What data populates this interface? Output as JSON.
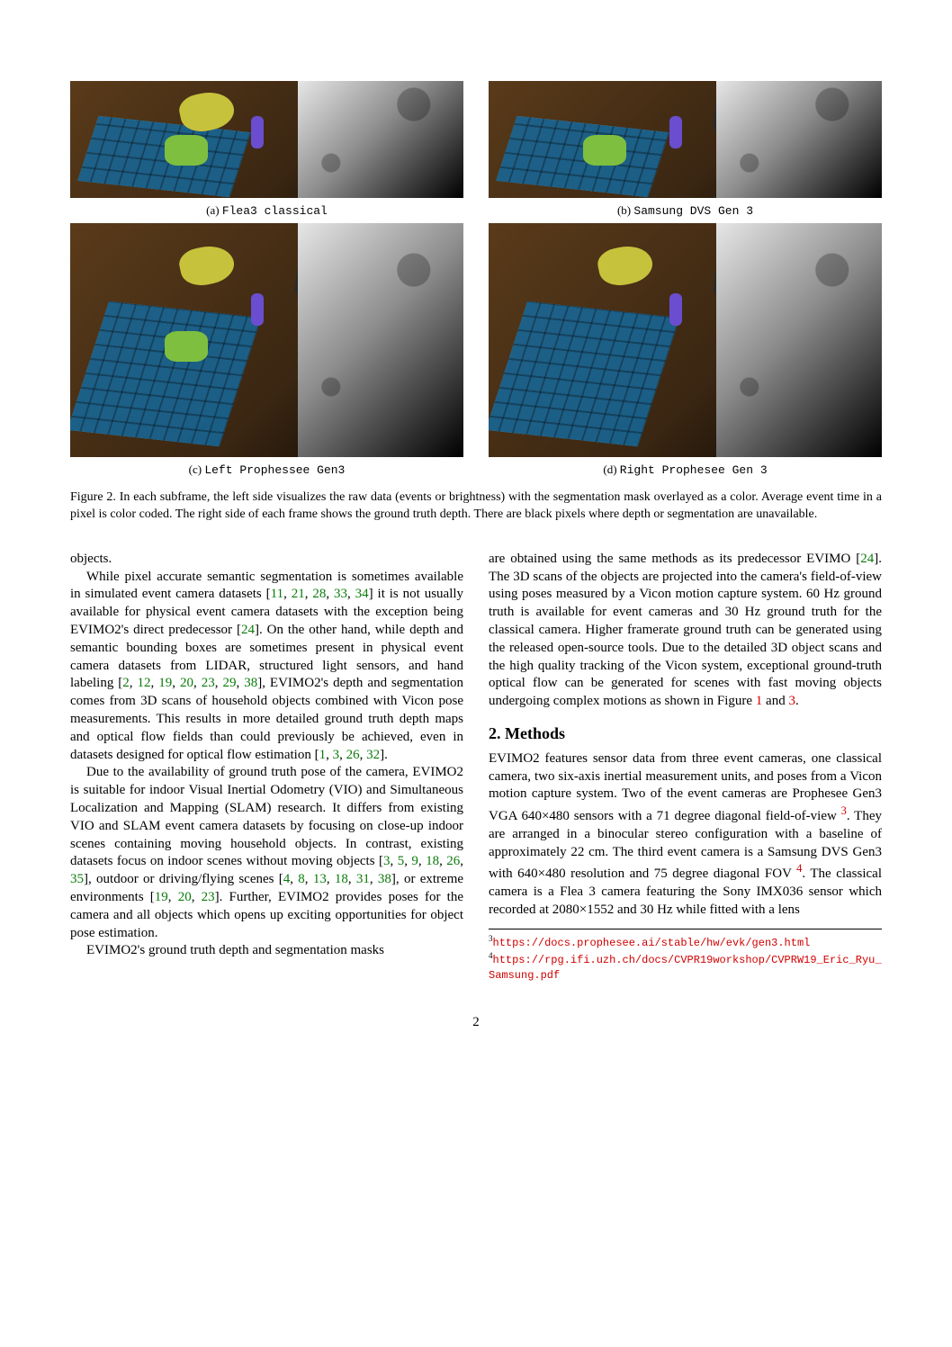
{
  "figure": {
    "sub_a_label": "(a)",
    "sub_a_name": "Flea3 classical",
    "sub_b_label": "(b)",
    "sub_b_name": "Samsung DVS Gen 3",
    "sub_c_label": "(c)",
    "sub_c_name": "Left Prophessee Gen3",
    "sub_d_label": "(d)",
    "sub_d_name": "Right Prophesee Gen 3",
    "caption": "Figure 2. In each subframe, the left side visualizes the raw data (events or brightness) with the segmentation mask overlayed as a color. Average event time in a pixel is color coded. The right side of each frame shows the ground truth depth. There are black pixels where depth or segmentation are unavailable."
  },
  "body": {
    "p0": "objects.",
    "p1a": "While pixel accurate semantic segmentation is sometimes available in simulated event camera datasets [",
    "p1_c1": "11",
    "p1_s1": ", ",
    "p1_c2": "21",
    "p1_s2": ", ",
    "p1_c3": "28",
    "p1_s3": ", ",
    "p1_c4": "33",
    "p1_s4": ", ",
    "p1_c5": "34",
    "p1b": "] it is not usually available for physical event camera datasets with the exception being EVIMO2's direct predecessor [",
    "p1_c6": "24",
    "p1c": "]. On the other hand, while depth and semantic bounding boxes are sometimes present in physical event camera datasets from LIDAR, structured light sensors, and hand labeling [",
    "p1_c7": "2",
    "p1_s7": ", ",
    "p1_c8": "12",
    "p1_s8": ", ",
    "p1_c9": "19",
    "p1_s9": ", ",
    "p1_c10": "20",
    "p1_s10": ", ",
    "p1_c11": "23",
    "p1_s11": ", ",
    "p1_c12": "29",
    "p1_s12": ", ",
    "p1_c13": "38",
    "p1d": "], EVIMO2's depth and segmentation comes from 3D scans of household objects combined with Vicon pose measurements. This results in more detailed ground truth depth maps and optical flow fields than could previously be achieved, even in datasets designed for optical flow estimation [",
    "p1_c14": "1",
    "p1_s14": ", ",
    "p1_c15": "3",
    "p1_s15": ", ",
    "p1_c16": "26",
    "p1_s16": ", ",
    "p1_c17": "32",
    "p1e": "].",
    "p2a": "Due to the availability of ground truth pose of the camera, EVIMO2 is suitable for indoor Visual Inertial Odometry (VIO) and Simultaneous Localization and Mapping (SLAM) research. It differs from existing VIO and SLAM event camera datasets by focusing on close-up indoor scenes containing moving household objects. In contrast, existing datasets focus on indoor scenes without moving objects [",
    "p2_c1": "3",
    "p2_s1": ", ",
    "p2_c2": "5",
    "p2_s2": ", ",
    "p2_c3": "9",
    "p2_s3": ", ",
    "p2_c4": "18",
    "p2_s4": ", ",
    "p2_c5": "26",
    "p2_s5": ", ",
    "p2_c6": "35",
    "p2b": "], outdoor or driving/flying scenes [",
    "p2_c7": "4",
    "p2_s7": ", ",
    "p2_c8": "8",
    "p2_s8": ", ",
    "p2_c9": "13",
    "p2_s9": ", ",
    "p2_c10": "18",
    "p2_s10": ", ",
    "p2_c11": "31",
    "p2_s11": ", ",
    "p2_c12": "38",
    "p2c": "], or extreme environments [",
    "p2_c13": "19",
    "p2_s13": ", ",
    "p2_c14": "20",
    "p2_s14": ", ",
    "p2_c15": "23",
    "p2d": "]. Further, EVIMO2 provides poses for the camera and all objects which opens up exciting opportunities for object pose estimation.",
    "p3": "EVIMO2's ground truth depth and segmentation masks",
    "p4a": "are obtained using the same methods as its predecessor EVIMO [",
    "p4_c1": "24",
    "p4b": "]. The 3D scans of the objects are projected into the camera's field-of-view using poses measured by a Vicon motion capture system. 60 Hz ground truth is available for event cameras and 30 Hz ground truth for the classical camera. Higher framerate ground truth can be generated using the released open-source tools. Due to the detailed 3D object scans and the high quality tracking of the Vicon system, exceptional ground-truth optical flow can be generated for scenes with fast moving objects undergoing complex motions as shown in Figure ",
    "p4_f1": "1",
    "p4_and": " and ",
    "p4_f2": "3",
    "p4_end": "."
  },
  "section": {
    "title": "2. Methods"
  },
  "methods": {
    "p1a": "EVIMO2 features sensor data from three event cameras, one classical camera, two six-axis inertial measurement units, and poses from a Vicon motion capture system. Two of the event cameras are Prophesee Gen3 VGA 640×480 sensors with a 71 degree diagonal field-of-view ",
    "p1_fn1": "3",
    "p1b": ". They are arranged in a binocular stereo configuration with a baseline of approximately 22 cm. The third event camera is a Samsung DVS Gen3 with 640×480 resolution and 75 degree diagonal FOV ",
    "p1_fn2": "4",
    "p1c": ". The classical camera is a Flea 3 camera featuring the Sony IMX036 sensor which recorded at 2080×1552 and 30 Hz while fitted with a lens"
  },
  "footnotes": {
    "n3_mark": "3",
    "n3_url": "https://docs.prophesee.ai/stable/hw/evk/gen3.html",
    "n4_mark": "4",
    "n4_url": "https://rpg.ifi.uzh.ch/docs/CVPR19workshop/CVPRW19_Eric_Ryu_Samsung.pdf"
  },
  "page_number": "2",
  "colors": {
    "cite_green": "#0a7a0a",
    "cite_red": "#d10000",
    "text": "#000000",
    "background": "#ffffff"
  }
}
